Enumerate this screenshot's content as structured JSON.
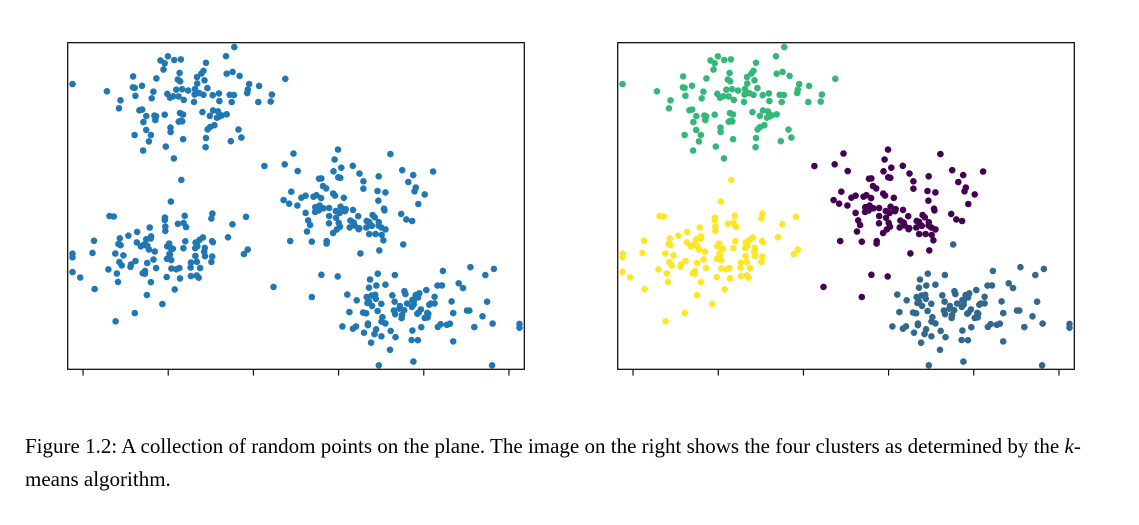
{
  "caption": {
    "part1": "Figure 1.2: A collection of random points on the plane. The image on the right shows the four clusters as determined by the ",
    "math_k": "k",
    "part2": "-means algorithm."
  },
  "chart_data": {
    "type": "scatter",
    "title": "",
    "xlabel": "",
    "ylabel": "",
    "xlim": [
      0,
      10
    ],
    "ylim": [
      0,
      7
    ],
    "seed": 42,
    "axes": {
      "frame": true,
      "tick_marks_bottom": 6,
      "tick_labels": false,
      "grid": false,
      "frame_color": "#000000"
    },
    "panels": [
      {
        "id": "left",
        "description": "A collection of random points on the plane, all drawn in one color",
        "point_color": "#1f77b4",
        "color_by_cluster": false
      },
      {
        "id": "right",
        "description": "The same points colored by the four clusters found by the k-means algorithm",
        "point_color": "",
        "color_by_cluster": true
      }
    ],
    "clusters": [
      {
        "name": "top",
        "color": "#35b779",
        "center": [
          2.7,
          5.76
        ],
        "std": [
          0.85,
          0.56
        ],
        "n": 100
      },
      {
        "name": "center-right",
        "color": "#440154",
        "center": [
          6.07,
          3.52
        ],
        "std": [
          0.8,
          0.5
        ],
        "n": 100
      },
      {
        "name": "middle-left",
        "color": "#fde725",
        "center": [
          2.15,
          2.6
        ],
        "std": [
          0.9,
          0.5
        ],
        "n": 100
      },
      {
        "name": "bottom-right",
        "color": "#31688e",
        "center": [
          7.53,
          1.28
        ],
        "std": [
          0.9,
          0.44
        ],
        "n": 100
      }
    ]
  }
}
